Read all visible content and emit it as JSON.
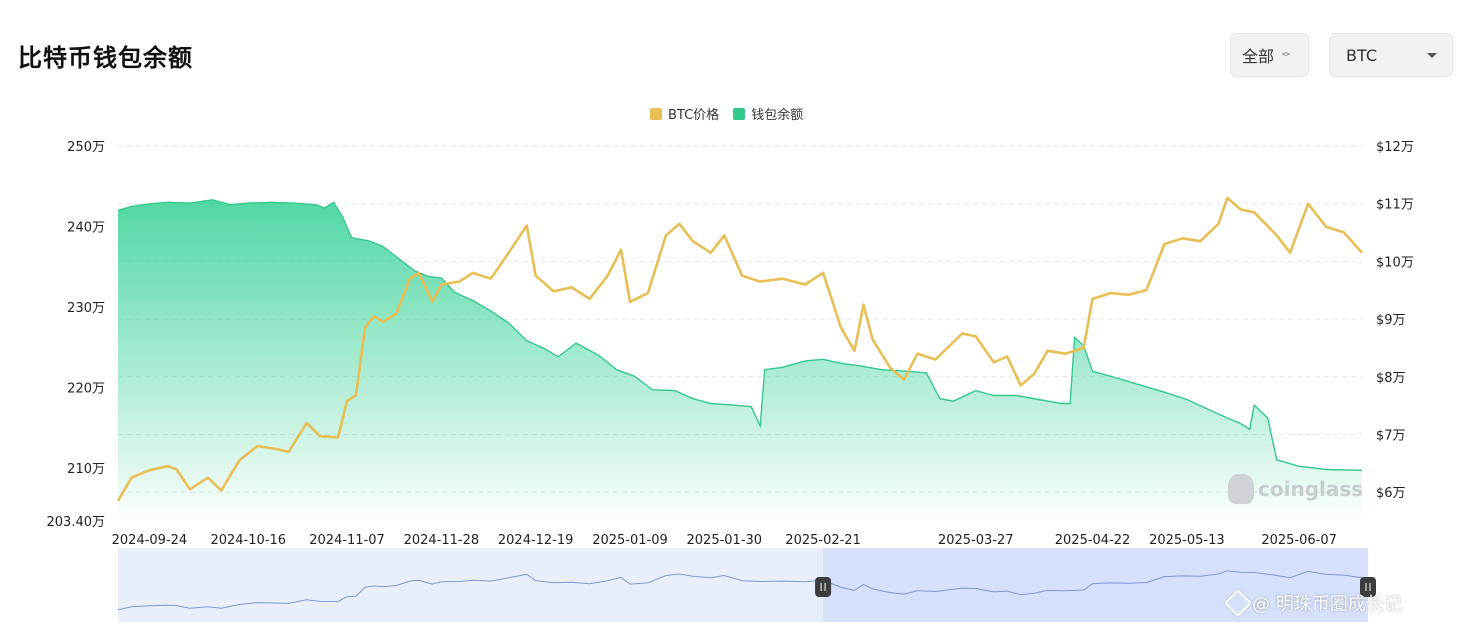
{
  "header": {
    "title": "比特币钱包余额",
    "scope_select": "全部",
    "coin_select": "BTC"
  },
  "watermark": "coinglass",
  "credit": "@ 明珠币圈成长记",
  "colors": {
    "price_line": "#E8BE55",
    "balance": "#33C98C",
    "balance_fill": "#3DD39A",
    "navigator_line": "#7E96D4",
    "navigator_bg": "#E9EEFB",
    "navigator_selected": "#D6E0FB",
    "grid": "#e6e6e6"
  },
  "chart_data": {
    "type": "line",
    "legend": [
      {
        "name": "BTC价格",
        "color": "#E8BE55"
      },
      {
        "name": "钱包余额",
        "color": "#33C98C"
      }
    ],
    "legend_position": "top-center",
    "grid": true,
    "x_range": [
      "2024-09-17",
      "2025-06-21"
    ],
    "x_tick_labels": [
      "2024-09-24",
      "2024-10-16",
      "2024-11-07",
      "2024-11-28",
      "2024-12-19",
      "2025-01-09",
      "2025-01-30",
      "2025-02-21",
      "2025-03-27",
      "2025-04-22",
      "2025-05-13",
      "2025-06-07"
    ],
    "y_left": {
      "min": 2034000,
      "max": 2500000,
      "tick_values": [
        2034000,
        2100000,
        2200000,
        2300000,
        2400000,
        2500000
      ],
      "tick_labels": [
        "203.40万",
        "210万",
        "220万",
        "230万",
        "240万",
        "250万"
      ]
    },
    "y_right": {
      "min": 55000,
      "max": 120000,
      "tick_values": [
        60000,
        70000,
        80000,
        90000,
        100000,
        110000,
        120000
      ],
      "tick_labels": [
        "$6万",
        "$7万",
        "$8万",
        "$9万",
        "$10万",
        "$11万",
        "$12万"
      ]
    },
    "series": [
      {
        "name": "钱包余额",
        "axis": "left",
        "type": "area",
        "points": [
          [
            "2024-09-17",
            2420000
          ],
          [
            "2024-09-20",
            2425000
          ],
          [
            "2024-09-24",
            2428000
          ],
          [
            "2024-09-28",
            2430000
          ],
          [
            "2024-10-03",
            2429000
          ],
          [
            "2024-10-08",
            2433000
          ],
          [
            "2024-10-12",
            2427000
          ],
          [
            "2024-10-16",
            2429000
          ],
          [
            "2024-10-21",
            2430000
          ],
          [
            "2024-10-26",
            2429000
          ],
          [
            "2024-10-31",
            2427000
          ],
          [
            "2024-11-02",
            2423000
          ],
          [
            "2024-11-04",
            2430000
          ],
          [
            "2024-11-06",
            2412000
          ],
          [
            "2024-11-08",
            2386000
          ],
          [
            "2024-11-12",
            2382000
          ],
          [
            "2024-11-15",
            2375000
          ],
          [
            "2024-11-19",
            2358000
          ],
          [
            "2024-11-22",
            2345000
          ],
          [
            "2024-11-25",
            2338000
          ],
          [
            "2024-11-28",
            2336000
          ],
          [
            "2024-12-01",
            2318000
          ],
          [
            "2024-12-05",
            2308000
          ],
          [
            "2024-12-09",
            2295000
          ],
          [
            "2024-12-13",
            2280000
          ],
          [
            "2024-12-17",
            2258000
          ],
          [
            "2024-12-21",
            2248000
          ],
          [
            "2024-12-24",
            2238000
          ],
          [
            "2024-12-28",
            2255000
          ],
          [
            "2025-01-02",
            2240000
          ],
          [
            "2025-01-06",
            2222000
          ],
          [
            "2025-01-10",
            2214000
          ],
          [
            "2025-01-14",
            2197000
          ],
          [
            "2025-01-19",
            2196000
          ],
          [
            "2025-01-23",
            2186000
          ],
          [
            "2025-01-27",
            2180000
          ],
          [
            "2025-02-01",
            2178000
          ],
          [
            "2025-02-05",
            2176000
          ],
          [
            "2025-02-07",
            2152000
          ],
          [
            "2025-02-08",
            2222000
          ],
          [
            "2025-02-12",
            2225000
          ],
          [
            "2025-02-17",
            2233000
          ],
          [
            "2025-02-21",
            2235000
          ],
          [
            "2025-02-25",
            2230000
          ],
          [
            "2025-03-01",
            2227000
          ],
          [
            "2025-03-06",
            2222000
          ],
          [
            "2025-03-12",
            2220000
          ],
          [
            "2025-03-16",
            2218000
          ],
          [
            "2025-03-19",
            2186000
          ],
          [
            "2025-03-22",
            2183000
          ],
          [
            "2025-03-27",
            2196000
          ],
          [
            "2025-03-31",
            2190000
          ],
          [
            "2025-04-05",
            2190000
          ],
          [
            "2025-04-10",
            2185000
          ],
          [
            "2025-04-15",
            2180000
          ],
          [
            "2025-04-17",
            2180000
          ],
          [
            "2025-04-18",
            2262000
          ],
          [
            "2025-04-20",
            2252000
          ],
          [
            "2025-04-22",
            2220000
          ],
          [
            "2025-04-26",
            2214000
          ],
          [
            "2025-05-02",
            2204000
          ],
          [
            "2025-05-08",
            2194000
          ],
          [
            "2025-05-13",
            2185000
          ],
          [
            "2025-05-18",
            2172000
          ],
          [
            "2025-05-22",
            2162000
          ],
          [
            "2025-05-25",
            2155000
          ],
          [
            "2025-05-27",
            2148000
          ],
          [
            "2025-05-28",
            2178000
          ],
          [
            "2025-05-31",
            2162000
          ],
          [
            "2025-06-02",
            2110000
          ],
          [
            "2025-06-07",
            2102000
          ],
          [
            "2025-06-13",
            2098000
          ],
          [
            "2025-06-21",
            2097000
          ]
        ]
      },
      {
        "name": "BTC价格",
        "axis": "right",
        "type": "line",
        "points": [
          [
            "2024-09-17",
            58500
          ],
          [
            "2024-09-20",
            62500
          ],
          [
            "2024-09-24",
            63800
          ],
          [
            "2024-09-28",
            64500
          ],
          [
            "2024-09-30",
            64000
          ],
          [
            "2024-10-03",
            60500
          ],
          [
            "2024-10-07",
            62500
          ],
          [
            "2024-10-10",
            60300
          ],
          [
            "2024-10-14",
            65500
          ],
          [
            "2024-10-18",
            68000
          ],
          [
            "2024-10-22",
            67500
          ],
          [
            "2024-10-25",
            67000
          ],
          [
            "2024-10-29",
            72000
          ],
          [
            "2024-11-01",
            69700
          ],
          [
            "2024-11-05",
            69500
          ],
          [
            "2024-11-07",
            75800
          ],
          [
            "2024-11-09",
            76800
          ],
          [
            "2024-11-11",
            88500
          ],
          [
            "2024-11-13",
            90500
          ],
          [
            "2024-11-15",
            89500
          ],
          [
            "2024-11-18",
            91000
          ],
          [
            "2024-11-21",
            97000
          ],
          [
            "2024-11-23",
            98000
          ],
          [
            "2024-11-26",
            93000
          ],
          [
            "2024-11-28",
            96000
          ],
          [
            "2024-12-02",
            96500
          ],
          [
            "2024-12-05",
            98000
          ],
          [
            "2024-12-09",
            97000
          ],
          [
            "2024-12-13",
            101500
          ],
          [
            "2024-12-17",
            106200
          ],
          [
            "2024-12-19",
            97500
          ],
          [
            "2024-12-23",
            94800
          ],
          [
            "2024-12-27",
            95500
          ],
          [
            "2024-12-31",
            93500
          ],
          [
            "2025-01-04",
            97500
          ],
          [
            "2025-01-07",
            102000
          ],
          [
            "2025-01-09",
            93000
          ],
          [
            "2025-01-13",
            94500
          ],
          [
            "2025-01-17",
            104500
          ],
          [
            "2025-01-20",
            106500
          ],
          [
            "2025-01-23",
            103500
          ],
          [
            "2025-01-27",
            101500
          ],
          [
            "2025-01-30",
            104500
          ],
          [
            "2025-02-03",
            97500
          ],
          [
            "2025-02-07",
            96500
          ],
          [
            "2025-02-12",
            97000
          ],
          [
            "2025-02-17",
            96000
          ],
          [
            "2025-02-21",
            98000
          ],
          [
            "2025-02-25",
            88500
          ],
          [
            "2025-02-28",
            84500
          ],
          [
            "2025-03-02",
            92500
          ],
          [
            "2025-03-04",
            86500
          ],
          [
            "2025-03-08",
            81500
          ],
          [
            "2025-03-11",
            79500
          ],
          [
            "2025-03-14",
            84000
          ],
          [
            "2025-03-18",
            83000
          ],
          [
            "2025-03-24",
            87500
          ],
          [
            "2025-03-27",
            87000
          ],
          [
            "2025-03-31",
            82500
          ],
          [
            "2025-04-03",
            83500
          ],
          [
            "2025-04-06",
            78500
          ],
          [
            "2025-04-09",
            80500
          ],
          [
            "2025-04-12",
            84500
          ],
          [
            "2025-04-16",
            84000
          ],
          [
            "2025-04-20",
            85000
          ],
          [
            "2025-04-22",
            93500
          ],
          [
            "2025-04-26",
            94500
          ],
          [
            "2025-04-30",
            94200
          ],
          [
            "2025-05-04",
            95000
          ],
          [
            "2025-05-08",
            103000
          ],
          [
            "2025-05-12",
            104000
          ],
          [
            "2025-05-16",
            103500
          ],
          [
            "2025-05-20",
            106500
          ],
          [
            "2025-05-22",
            111000
          ],
          [
            "2025-05-25",
            109000
          ],
          [
            "2025-05-28",
            108500
          ],
          [
            "2025-06-02",
            104500
          ],
          [
            "2025-06-05",
            101500
          ],
          [
            "2025-06-09",
            110000
          ],
          [
            "2025-06-13",
            106000
          ],
          [
            "2025-06-17",
            105000
          ],
          [
            "2025-06-21",
            101500
          ]
        ]
      }
    ],
    "navigator": {
      "selected_range": [
        "2025-02-21",
        "2025-06-21"
      ]
    }
  }
}
